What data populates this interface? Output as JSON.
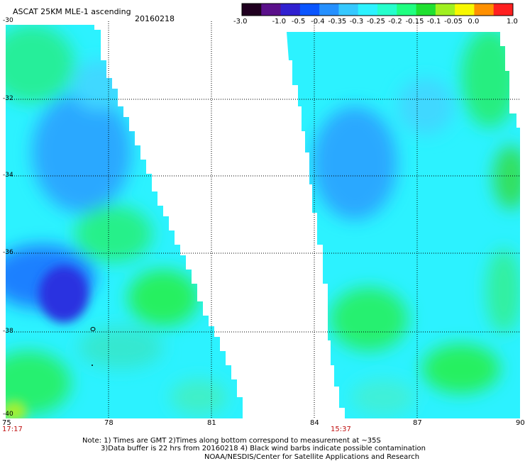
{
  "header": {
    "title": "ASCAT 25KM MLE-1 ascending",
    "date": "20160218"
  },
  "colorbar": {
    "labels": [
      "-3.0",
      "-1.0",
      "-0.5",
      "-0.4",
      "-0.35",
      "-0.3",
      "-0.25",
      "-0.2",
      "-0.15",
      "-0.1",
      "-0.05",
      "0.0",
      "1.0"
    ],
    "colors": [
      "#200020",
      "#5a108a",
      "#3020d0",
      "#0a55ff",
      "#2590ff",
      "#35c8ff",
      "#2cf2ff",
      "#25ffcc",
      "#20ff80",
      "#20e030",
      "#a0f020",
      "#f8f800",
      "#ff9000",
      "#ff2020"
    ]
  },
  "map": {
    "lon_labels": [
      "75",
      "78",
      "81",
      "84",
      "87",
      "90"
    ],
    "lat_labels": [
      "-30",
      "-32",
      "-34",
      "-36",
      "-38",
      "-40"
    ],
    "pass_times": [
      "17:17",
      "15:37"
    ],
    "colors": {
      "background": "#2cf2ff",
      "green": "#20f07a",
      "blue": "#1e8cff",
      "deep_blue": "#2a2ae0",
      "grid": "#000000",
      "time": "#c01010"
    }
  },
  "footer": {
    "note_line1": "Note: 1) Times are GMT 2)Times along bottom correspond to measurement at ~35S",
    "note_line2": "3)Data buffer is 22 hrs from 20160218 4) Black wind barbs indicate possible contamination",
    "credit": "NOAA/NESDIS/Center for Satellite Applications and Research"
  }
}
